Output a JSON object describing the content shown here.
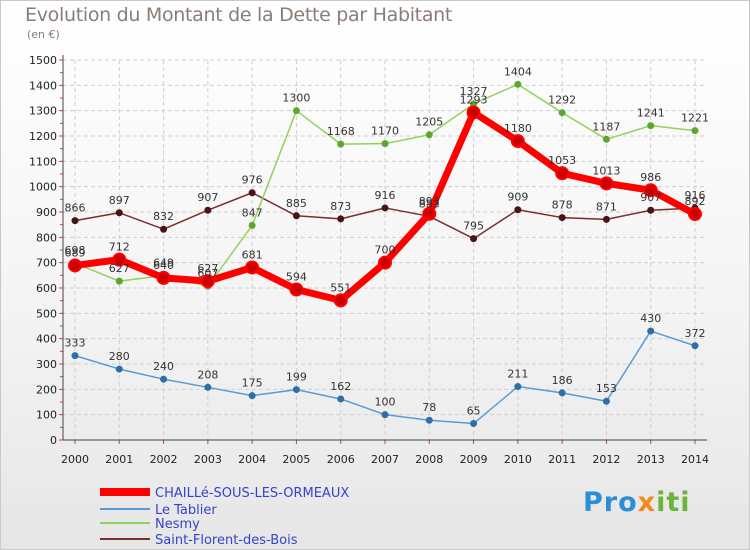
{
  "title": "Evolution du Montant de la Dette par Habitant",
  "unit": "(en €)",
  "brand": "Proxiti",
  "chart_data": {
    "type": "line",
    "title": "Evolution du Montant de la Dette par Habitant",
    "ylabel": "(en €)",
    "xlabel": "",
    "ylim": [
      0,
      1500
    ],
    "grid": true,
    "legend_position": "bottom-left",
    "x": [
      "2000",
      "2001",
      "2002",
      "2003",
      "2004",
      "2005",
      "2006",
      "2007",
      "2008",
      "2009",
      "2010",
      "2011",
      "2012",
      "2013",
      "2014"
    ],
    "yticks": [
      "0",
      "100",
      "200",
      "300",
      "400",
      "500",
      "600",
      "700",
      "800",
      "900",
      "1000",
      "1100",
      "1200",
      "1300",
      "1400",
      "1500"
    ],
    "series": [
      {
        "name": "CHAILLé-SOUS-LES-ORMEAUX",
        "color": "#ff0000",
        "values": [
          689,
          712,
          640,
          627,
          681,
          594,
          551,
          700,
          893,
          1293,
          1180,
          1053,
          1013,
          986,
          892
        ]
      },
      {
        "name": "Le Tablier",
        "color": "#5b9bd5",
        "values": [
          333,
          280,
          240,
          208,
          175,
          199,
          162,
          100,
          78,
          65,
          211,
          186,
          153,
          430,
          372
        ]
      },
      {
        "name": "Nesmy",
        "color": "#8fd35c",
        "values": [
          698,
          627,
          649,
          607,
          847,
          1300,
          1168,
          1170,
          1205,
          1327,
          1404,
          1292,
          1187,
          1241,
          1221
        ]
      },
      {
        "name": "Saint-Florent-des-Bois",
        "color": "#7b2c2c",
        "values": [
          866,
          897,
          832,
          907,
          976,
          885,
          873,
          916,
          883,
          795,
          909,
          878,
          871,
          907,
          916
        ]
      }
    ]
  }
}
